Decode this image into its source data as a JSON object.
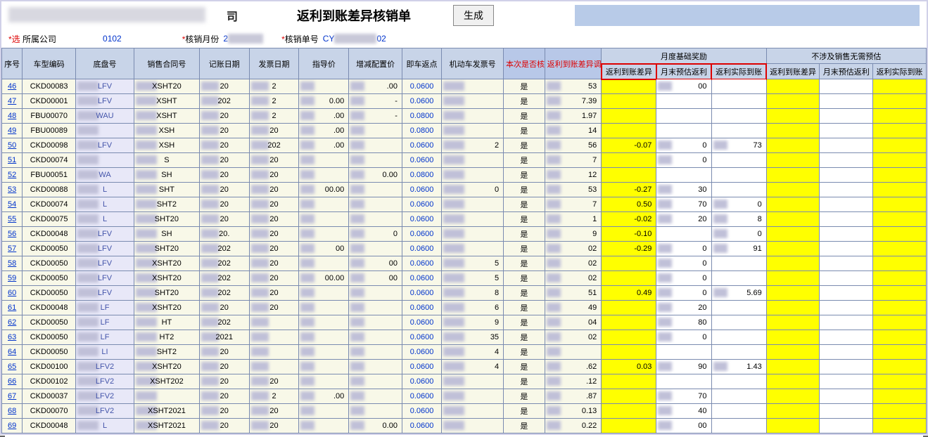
{
  "header": {
    "company_suffix": "司",
    "main_title": "返利到账差异核销单",
    "gen_button": "生成"
  },
  "filters": {
    "company_label": "所属公司",
    "company_value": "0102",
    "month_label": "核销月份",
    "month_value": "2",
    "docno_label": "核销单号",
    "docno_prefix": "CY",
    "docno_suffix": "02"
  },
  "columns": {
    "seq": "序号",
    "code": "车型编码",
    "chassis": "底盘号",
    "contract": "销售合同号",
    "book_date": "记账日期",
    "inv_date": "发票日期",
    "guide_price": "指导价",
    "adj_price": "增减配置价",
    "return_pt": "即车返点",
    "vehicle_inv": "机动车发票号",
    "verify": "本次是否核销",
    "adj_sum": "返利到账差异调整合计",
    "group_month": "月度基础奖励",
    "group_nosale": "不涉及销售无需预估",
    "rebate_diff": "返利到账差异",
    "month_est": "月末预估返利",
    "actual_arr": "返利实际到账"
  },
  "rows": [
    {
      "seq": "46",
      "code": "CKD00083",
      "chassis": "LFV",
      "contract": "XSHT20",
      "bd": "20",
      "bd2": "0",
      "id": "2",
      "id2": "6",
      "gp": "",
      "ap": ".00",
      "rp": "0.0600",
      "inv": "",
      "ver": "是",
      "adj": "53",
      "r1": "",
      "e1": "00",
      "a1": "",
      "r2": "",
      "e2": "",
      "a2": ""
    },
    {
      "seq": "47",
      "code": "CKD00001",
      "chassis": "LFV",
      "contract": "XSHT",
      "bd": "202",
      "bd2": "",
      "id": "2",
      "id2": "6",
      "gp": "0.00",
      "ap": "-",
      "rp": "0.0600",
      "inv": "",
      "ver": "是",
      "adj": "7.39",
      "r1": "",
      "e1": "",
      "a1": "",
      "r2": "",
      "e2": "",
      "a2": ""
    },
    {
      "seq": "48",
      "code": "FBU00070",
      "chassis": "WAU",
      "contract": "XSHT",
      "bd": "20",
      "bd2": "",
      "id": "2",
      "id2": "6",
      "gp": ".00",
      "ap": "-",
      "rp": "0.0800",
      "inv": "",
      "ver": "是",
      "adj": "1.97",
      "r1": "",
      "e1": "",
      "a1": "",
      "r2": "",
      "e2": "",
      "a2": ""
    },
    {
      "seq": "49",
      "code": "FBU00089",
      "chassis": "",
      "contract": "XSH",
      "bd": "20",
      "bd2": "",
      "id": "20",
      "id2": "",
      "gp": ".00",
      "ap": "",
      "rp": "0.0800",
      "inv": "",
      "ver": "是",
      "adj": "14",
      "r1": "",
      "e1": "",
      "a1": "",
      "r2": "",
      "e2": "",
      "a2": ""
    },
    {
      "seq": "50",
      "code": "CKD00098",
      "chassis": "LFV",
      "contract": "XSH",
      "bd": "20",
      "bd2": "",
      "id": "202",
      "id2": "",
      "gp": ".00",
      "ap": "",
      "rp": "0.0600",
      "inv": "2",
      "ver": "是",
      "adj": "56",
      "r1": "-0.07",
      "e1": "0",
      "a1": "73",
      "r2": "",
      "e2": "",
      "a2": ""
    },
    {
      "seq": "51",
      "code": "CKD00074",
      "chassis": "",
      "contract": "S",
      "bd": "20",
      "bd2": "0",
      "id": "20",
      "id2": "1",
      "gp": "",
      "ap": "",
      "rp": "0.0600",
      "inv": "",
      "ver": "是",
      "adj": "7",
      "r1": "",
      "e1": "0",
      "a1": "",
      "r2": "",
      "e2": "",
      "a2": ""
    },
    {
      "seq": "52",
      "code": "FBU00051",
      "chassis": "WA",
      "contract": "SH",
      "bd": "20",
      "bd2": "0",
      "id": "20",
      "id2": "1",
      "gp": "",
      "ap": "0.00",
      "rp": "0.0800",
      "inv": "",
      "ver": "是",
      "adj": "12",
      "r1": "",
      "e1": "",
      "a1": "",
      "r2": "",
      "e2": "",
      "a2": ""
    },
    {
      "seq": "53",
      "code": "CKD00088",
      "chassis": "L",
      "contract": "SHT",
      "bd": "20",
      "bd2": "",
      "id": "20",
      "id2": "8",
      "gp": "00.00",
      "ap": "",
      "rp": "0.0600",
      "inv": "0",
      "ver": "是",
      "adj": "53",
      "r1": "-0.27",
      "e1": "30",
      "a1": "",
      "r2": "",
      "e2": "",
      "a2": ""
    },
    {
      "seq": "54",
      "code": "CKD00074",
      "chassis": "L",
      "contract": "SHT2",
      "bd": "20",
      "bd2": "",
      "id": "20",
      "id2": "7",
      "gp": "",
      "ap": "",
      "rp": "0.0600",
      "inv": "",
      "ver": "是",
      "adj": "7",
      "r1": "0.50",
      "e1": "70",
      "a1": "0",
      "r2": "",
      "e2": "",
      "a2": ""
    },
    {
      "seq": "55",
      "code": "CKD00075",
      "chassis": "L",
      "contract": "SHT20",
      "bd": "20",
      "bd2": "",
      "id": "20",
      "id2": "7",
      "gp": "",
      "ap": "",
      "rp": "0.0600",
      "inv": "",
      "ver": "是",
      "adj": "1",
      "r1": "-0.02",
      "e1": "20",
      "a1": "8",
      "r2": "",
      "e2": "",
      "a2": ""
    },
    {
      "seq": "56",
      "code": "CKD00048",
      "chassis": "LFV",
      "contract": "SH",
      "bd": "20.",
      "bd2": "",
      "id": "20",
      "id2": "",
      "gp": "",
      "ap": "0",
      "rp": "0.0600",
      "inv": "",
      "ver": "是",
      "adj": "9",
      "r1": "-0.10",
      "e1": "",
      "a1": "0",
      "r2": "",
      "e2": "",
      "a2": ""
    },
    {
      "seq": "57",
      "code": "CKD00050",
      "chassis": "LFV",
      "contract": "SHT20",
      "bd": "202",
      "bd2": "",
      "id": "20",
      "id2": "",
      "gp": "00",
      "ap": "",
      "rp": "0.0600",
      "inv": "",
      "ver": "是",
      "adj": "02",
      "r1": "-0.29",
      "e1": "0",
      "a1": "91",
      "r2": "",
      "e2": "",
      "a2": ""
    },
    {
      "seq": "58",
      "code": "CKD00050",
      "chassis": "LFV",
      "contract": "XSHT20",
      "bd": "202",
      "bd2": "",
      "id": "20",
      "id2": "7",
      "gp": "",
      "ap": "00",
      "rp": "0.0600",
      "inv": "5",
      "ver": "是",
      "adj": "02",
      "r1": "",
      "e1": "0",
      "a1": "",
      "r2": "",
      "e2": "",
      "a2": ""
    },
    {
      "seq": "59",
      "code": "CKD00050",
      "chassis": "LFV",
      "contract": "XSHT20",
      "bd": "202",
      "bd2": "",
      "id": "20",
      "id2": "7",
      "gp": "00.00",
      "ap": "00",
      "rp": "0.0600",
      "inv": "5",
      "ver": "是",
      "adj": "02",
      "r1": "",
      "e1": "0",
      "a1": "",
      "r2": "",
      "e2": "",
      "a2": ""
    },
    {
      "seq": "60",
      "code": "CKD00050",
      "chassis": "LFV",
      "contract": "SHT20",
      "bd": "202",
      "bd2": "",
      "id": "20",
      "id2": "7",
      "gp": "",
      "ap": "",
      "rp": "0.0600",
      "inv": "8",
      "ver": "是",
      "adj": "51",
      "r1": "0.49",
      "e1": "0",
      "a1": "5.69",
      "r2": "",
      "e2": "",
      "a2": ""
    },
    {
      "seq": "61",
      "code": "CKD00048",
      "chassis": "LF",
      "contract": "XSHT20",
      "bd": "20",
      "bd2": "",
      "id": "20",
      "id2": "7",
      "gp": "",
      "ap": "",
      "rp": "0.0600",
      "inv": "6",
      "ver": "是",
      "adj": "49",
      "r1": "",
      "e1": "20",
      "a1": "",
      "r2": "",
      "e2": "",
      "a2": ""
    },
    {
      "seq": "62",
      "code": "CKD00050",
      "chassis": "LF",
      "contract": "HT",
      "bd": "202",
      "bd2": "",
      "id": "",
      "id2": "7",
      "gp": "",
      "ap": "",
      "rp": "0.0600",
      "inv": "9",
      "ver": "是",
      "adj": "04",
      "r1": "",
      "e1": "80",
      "a1": "",
      "r2": "",
      "e2": "",
      "a2": ""
    },
    {
      "seq": "63",
      "code": "CKD00050",
      "chassis": "LF",
      "contract": "HT2",
      "bd": "2021",
      "bd2": "",
      "id": "",
      "id2": "7",
      "gp": "",
      "ap": "",
      "rp": "0.0600",
      "inv": "35",
      "ver": "是",
      "adj": "02",
      "r1": "",
      "e1": "0",
      "a1": "",
      "r2": "",
      "e2": "",
      "a2": ""
    },
    {
      "seq": "64",
      "code": "CKD00050",
      "chassis": "LI",
      "contract": "SHT2",
      "bd": "20",
      "bd2": "",
      "id": "",
      "id2": "",
      "gp": "",
      "ap": "",
      "rp": "0.0600",
      "inv": "4",
      "ver": "是",
      "adj": "",
      "r1": "",
      "e1": "",
      "a1": "",
      "r2": "",
      "e2": "",
      "a2": ""
    },
    {
      "seq": "65",
      "code": "CKD00100",
      "chassis": "LFV2",
      "contract": "XSHT20",
      "bd": "20",
      "bd2": "",
      "id": "",
      "id2": "",
      "gp": "",
      "ap": "",
      "rp": "0.0600",
      "inv": "4",
      "ver": "是",
      "adj": ".62",
      "r1": "0.03",
      "e1": "90",
      "a1": "1.43",
      "r2": "",
      "e2": "",
      "a2": ""
    },
    {
      "seq": "66",
      "code": "CKD00102",
      "chassis": "LFV2",
      "contract": "XSHT202",
      "bd": "20",
      "bd2": "",
      "id": "20",
      "id2": "6",
      "gp": "",
      "ap": "",
      "rp": "0.0600",
      "inv": "",
      "ver": "是",
      "adj": ".12",
      "r1": "",
      "e1": "",
      "a1": "",
      "r2": "",
      "e2": "",
      "a2": ""
    },
    {
      "seq": "67",
      "code": "CKD00037",
      "chassis": "LFV2",
      "contract": "",
      "bd": "20",
      "bd2": "0",
      "id": "2",
      "id2": "26",
      "gp": ".00",
      "ap": "",
      "rp": "0.0600",
      "inv": "",
      "ver": "是",
      "adj": ".87",
      "r1": "",
      "e1": "70",
      "a1": "",
      "r2": "",
      "e2": "",
      "a2": ""
    },
    {
      "seq": "68",
      "code": "CKD00070",
      "chassis": "LFV2",
      "contract": "XSHT2021",
      "bd": "20",
      "bd2": "",
      "id": "20",
      "id2": "26",
      "gp": "",
      "ap": "",
      "rp": "0.0600",
      "inv": "",
      "ver": "是",
      "adj": "0.13",
      "r1": "",
      "e1": "40",
      "a1": "",
      "r2": "",
      "e2": "",
      "a2": ""
    },
    {
      "seq": "69",
      "code": "CKD00048",
      "chassis": "L",
      "contract": "XSHT2021",
      "bd": "20",
      "bd2": "0",
      "id": "20",
      "id2": "26",
      "gp": "",
      "ap": "0.00",
      "rp": "0.0600",
      "inv": "",
      "ver": "是",
      "adj": "0.22",
      "r1": "",
      "e1": "00",
      "a1": "",
      "r2": "",
      "e2": "",
      "a2": ""
    }
  ],
  "styling": {
    "header_bg": "#c8d4e8",
    "cell_bg_cream": "#f8f8e8",
    "cell_bg_yellow": "#ffff00",
    "cell_bg_lav": "#e8e8f8",
    "border": "#7a8bb0",
    "link_blue": "#0033cc",
    "red": "#d00000",
    "blur_color": "#c0c0d8"
  }
}
